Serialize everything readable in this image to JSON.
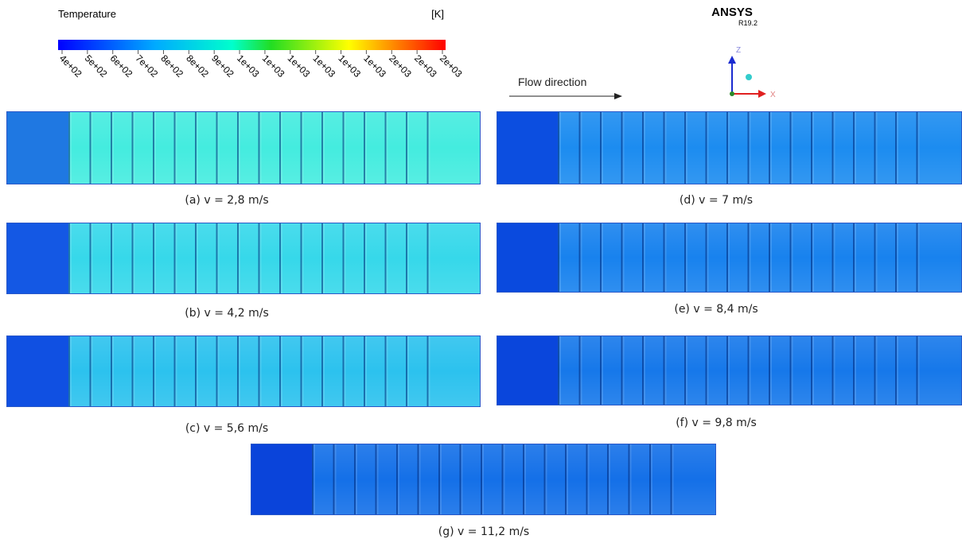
{
  "legend": {
    "title": "Temperature",
    "unit": "[K]",
    "ticks": [
      "4e+02",
      "5e+02",
      "6e+02",
      "7e+02",
      "8e+02",
      "8e+02",
      "9e+02",
      "1e+03",
      "1e+03",
      "1e+03",
      "1e+03",
      "1e+03",
      "1e+03",
      "2e+03",
      "2e+03",
      "2e+03"
    ]
  },
  "software": {
    "name": "ANSYS",
    "version": "R19.2"
  },
  "axes": {
    "z": "Z",
    "x": "X"
  },
  "flow_label": "Flow direction",
  "panels": [
    {
      "caption": "(a) v = 2,8 m/s"
    },
    {
      "caption": "(b) v = 4,2 m/s"
    },
    {
      "caption": "(c) v = 5,6 m/s"
    },
    {
      "caption": "(d) v = 7 m/s"
    },
    {
      "caption": "(e) v = 8,4 m/s"
    },
    {
      "caption": "(f) v = 9,8 m/s"
    },
    {
      "caption": "(g) v = 11,2 m/s"
    }
  ]
}
